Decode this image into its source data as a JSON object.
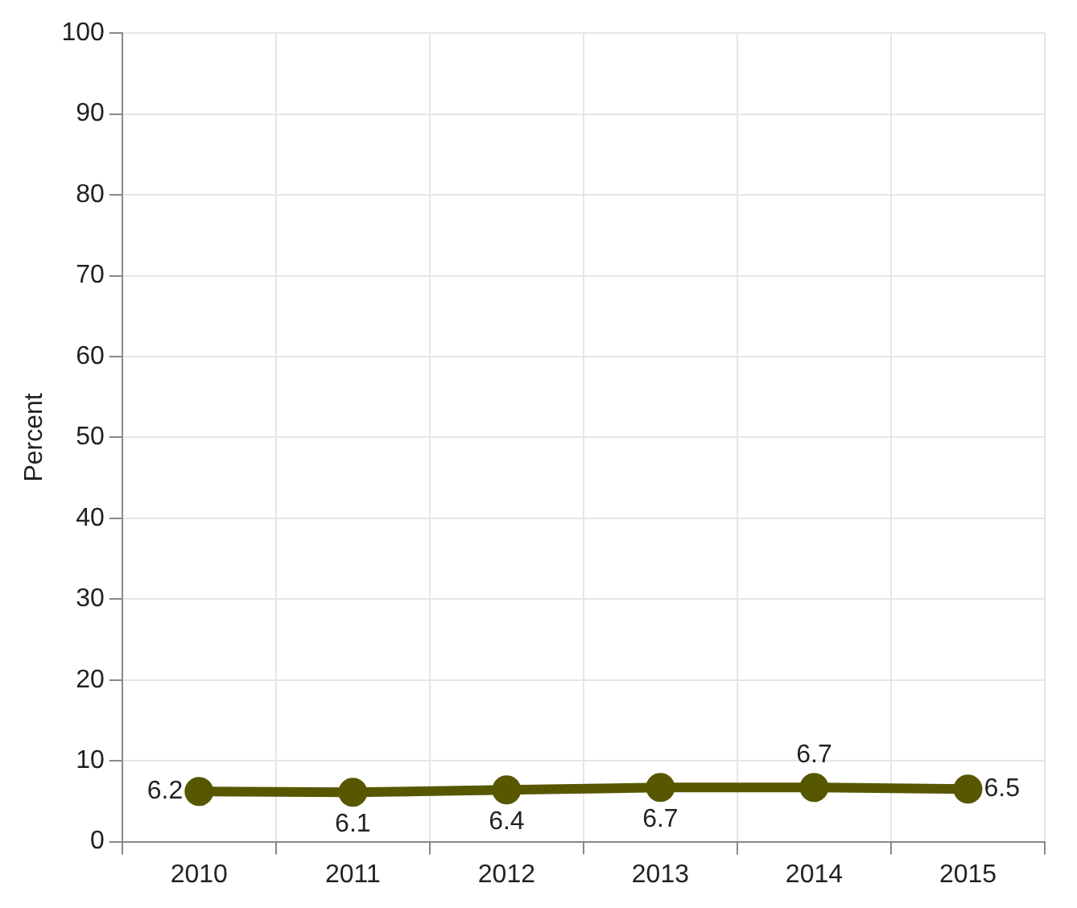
{
  "chart_data": {
    "type": "line",
    "ylabel": "Percent",
    "categories": [
      "2010",
      "2011",
      "2012",
      "2013",
      "2014",
      "2015"
    ],
    "series": [
      {
        "color": "#575700",
        "values": [
          6.2,
          6.1,
          6.4,
          6.7,
          6.7,
          6.5
        ]
      }
    ],
    "ylim": [
      0,
      100
    ],
    "yticks": [
      0,
      10,
      20,
      30,
      40,
      50,
      60,
      70,
      80,
      90,
      100
    ],
    "grid": true,
    "marker": "circle",
    "data_labels": true,
    "legend": false
  }
}
